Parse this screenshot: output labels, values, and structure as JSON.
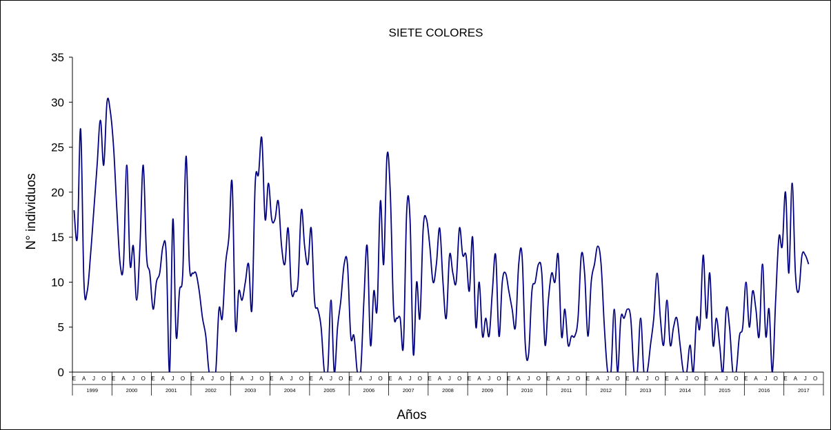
{
  "chart_data": {
    "type": "line",
    "title": "SIETE COLORES",
    "xlabel": "Años",
    "ylabel": "N° individuos",
    "ylim": [
      0,
      35
    ],
    "yticks": [
      "0",
      "5",
      "10",
      "15",
      "20",
      "25",
      "30",
      "35"
    ],
    "month_labels": [
      "E",
      "A",
      "J",
      "O"
    ],
    "years": [
      "1999",
      "2000",
      "2001",
      "2002",
      "2003",
      "2004",
      "2005",
      "2006",
      "2007",
      "2008",
      "2009",
      "2010",
      "2011",
      "2012",
      "2013",
      "2014",
      "2015",
      "2016",
      "2017"
    ],
    "grid": false,
    "line_color": "#000080",
    "series": [
      {
        "values": [
          18,
          15,
          27,
          10,
          9,
          13,
          18,
          23,
          28,
          23,
          30,
          29,
          25,
          18,
          12,
          12,
          23,
          12,
          14,
          8,
          14,
          23,
          13,
          11,
          7,
          10,
          11,
          14,
          13,
          0,
          17,
          4,
          9,
          11,
          24,
          12,
          11,
          11,
          9,
          6,
          4,
          0,
          0,
          0,
          7,
          6,
          12,
          15,
          21,
          5,
          9,
          8,
          10,
          12,
          7,
          21,
          22,
          26,
          17,
          21,
          17,
          17,
          19,
          14,
          12,
          16,
          9,
          9,
          10,
          18,
          14,
          12,
          16,
          8,
          7,
          5,
          0,
          0,
          8,
          0,
          5,
          8,
          12,
          12,
          4,
          4,
          0,
          0,
          8,
          14,
          3,
          9,
          7,
          19,
          12,
          24,
          20,
          7,
          6,
          6,
          3,
          18,
          17,
          2,
          10,
          6,
          16,
          17,
          14,
          10,
          12,
          16,
          10,
          6,
          13,
          11,
          10,
          16,
          13,
          13,
          9,
          15,
          5,
          10,
          4,
          6,
          4,
          9,
          13,
          4,
          10,
          11,
          9,
          7,
          5,
          12,
          13,
          3,
          2,
          9,
          10,
          12,
          11,
          3,
          8,
          11,
          10,
          13,
          4,
          7,
          3,
          4,
          4,
          6,
          13,
          11,
          4,
          10,
          12,
          14,
          12,
          5,
          0,
          0,
          7,
          0,
          6,
          6,
          7,
          6,
          0,
          0,
          6,
          0,
          0,
          3,
          6,
          11,
          6,
          3,
          8,
          3,
          5,
          6,
          3,
          0,
          0,
          3,
          0,
          6,
          5,
          13,
          6,
          11,
          3,
          6,
          3,
          0,
          7,
          5,
          0,
          0,
          4,
          5,
          10,
          5,
          9,
          7,
          4,
          12,
          4,
          7,
          0,
          8,
          15,
          14,
          20,
          11,
          21,
          11,
          9,
          13,
          13,
          12
        ]
      }
    ]
  }
}
